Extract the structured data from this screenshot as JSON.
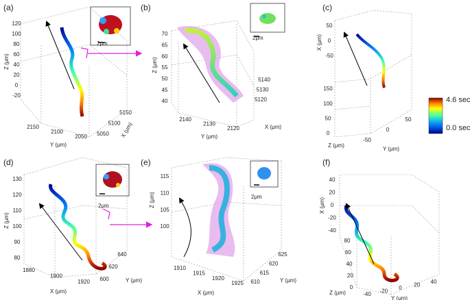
{
  "panels": [
    {
      "label": "(a)",
      "axes": [
        {
          "title": "Z (μm)",
          "ticks": [
            120,
            100,
            80,
            60,
            40,
            20,
            0,
            -20
          ]
        },
        {
          "title": "Y (μm)",
          "ticks": [
            2150,
            2100,
            2050
          ]
        },
        {
          "title": "X (μm)",
          "ticks": [
            5050,
            5100,
            5150
          ]
        }
      ],
      "scale": "2μm"
    },
    {
      "label": "(b)",
      "axes": [
        {
          "title": "Z (μm)",
          "ticks": [
            70,
            65,
            60,
            55,
            50,
            45,
            40
          ]
        },
        {
          "title": "Y (μm)",
          "ticks": [
            2140,
            2130,
            2120
          ]
        },
        {
          "title": "X (μm)",
          "ticks": [
            5120,
            5130,
            5140
          ]
        }
      ],
      "scale": "2μm"
    },
    {
      "label": "(c)",
      "axes": [
        {
          "title": "X (μm)",
          "ticks": [
            50,
            0,
            -50
          ]
        },
        {
          "title": "Z (μm)",
          "ticks": [
            150,
            100,
            50,
            0
          ]
        },
        {
          "title": "Y (μm)",
          "ticks": [
            -50,
            0,
            50
          ]
        }
      ]
    },
    {
      "label": "(d)",
      "axes": [
        {
          "title": "Z (μm)",
          "ticks": [
            130,
            120,
            110,
            100,
            90,
            80
          ]
        },
        {
          "title": "X (μm)",
          "ticks": [
            1880,
            1900,
            1920
          ]
        },
        {
          "title": "Y (μm)",
          "ticks": [
            600,
            620,
            640
          ]
        }
      ],
      "scale": "2μm"
    },
    {
      "label": "(e)",
      "axes": [
        {
          "title": "Z (μm)",
          "ticks": [
            115,
            110,
            105,
            100
          ]
        },
        {
          "title": "X (μm)",
          "ticks": [
            1910,
            1915,
            1920,
            1925
          ]
        },
        {
          "title": "Y (μm)",
          "ticks": [
            610,
            615,
            620,
            625
          ]
        }
      ],
      "scale": "2μm"
    },
    {
      "label": "(f)",
      "axes": [
        {
          "title": "X (μm)",
          "ticks": [
            40,
            20,
            0,
            -20,
            -40
          ]
        },
        {
          "title": "Z (μm)",
          "ticks": [
            80,
            60,
            40,
            20,
            0
          ]
        },
        {
          "title": "Y (μm)",
          "ticks": [
            -40,
            -20,
            0,
            20,
            40
          ]
        }
      ]
    }
  ],
  "colorbar": {
    "max": "4.6 sec",
    "min": "0.0 sec"
  }
}
